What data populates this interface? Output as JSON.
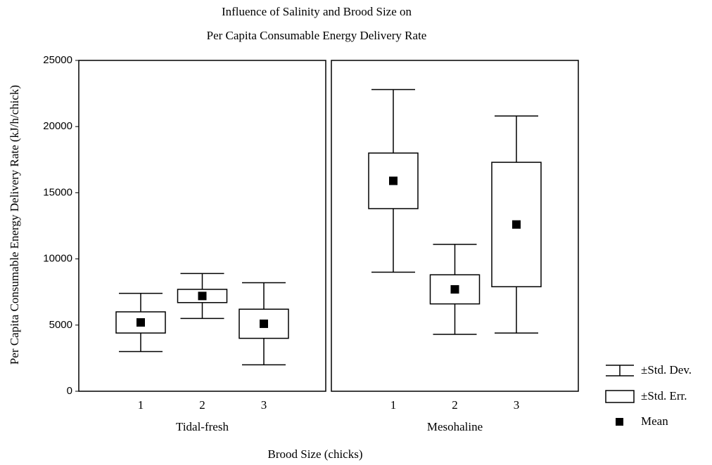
{
  "chart_data": {
    "type": "box",
    "title": [
      "Influence of Salinity and Brood Size on",
      "Per Capita Consumable Energy Delivery Rate"
    ],
    "ylabel": "Per Capita Consumable Energy Delivery Rate (kJ/h/chick)",
    "xlabel": "Brood Size (chicks)",
    "ylim": [
      0,
      25000
    ],
    "yticks": [
      0,
      5000,
      10000,
      15000,
      20000,
      25000
    ],
    "categories": [
      "1",
      "2",
      "3"
    ],
    "panels": [
      {
        "name": "Tidal-fresh",
        "mean": [
          5200,
          7200,
          5100
        ],
        "se": [
          800,
          500,
          1100
        ],
        "sd": [
          2200,
          1700,
          3100
        ]
      },
      {
        "name": "Mesohaline",
        "mean": [
          15900,
          7700,
          12600
        ],
        "se": [
          2100,
          1100,
          4700
        ],
        "sd": [
          6900,
          3400,
          8200
        ]
      }
    ],
    "legend": [
      "±Std. Dev.",
      "±Std. Err.",
      "Mean"
    ]
  }
}
